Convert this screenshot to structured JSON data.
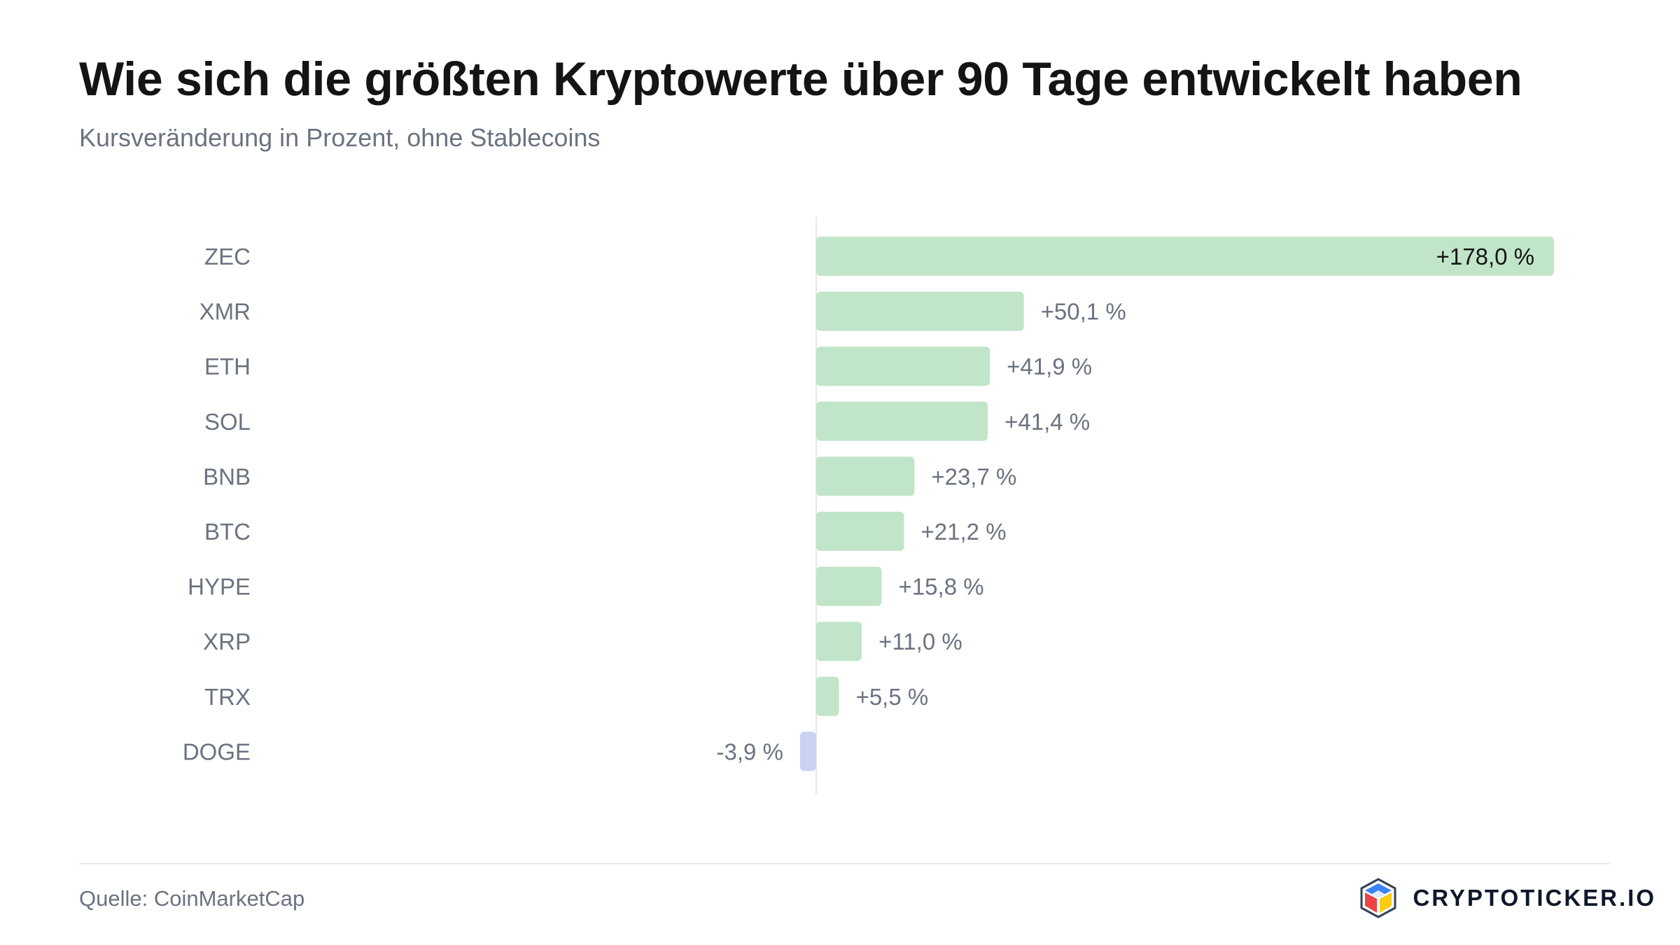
{
  "header": {
    "title": "Wie sich die größten Kryptowerte über 90 Tage entwickelt haben",
    "subtitle": "Kursveränderung in Prozent, ohne Stablecoins"
  },
  "footer": {
    "source": "Quelle: CoinMarketCap",
    "brand": "CRYPTOTICKER.IO"
  },
  "colors": {
    "positive_bar": "#c1e5c8",
    "negative_bar": "#c9d3f1",
    "label_text": "#6b7280",
    "inside_label_text": "#141414",
    "axis_line": "#e5e7eb"
  },
  "chart_data": {
    "type": "bar",
    "orientation": "horizontal",
    "title": "Wie sich die größten Kryptowerte über 90 Tage entwickelt haben",
    "subtitle": "Kursveränderung in Prozent, ohne Stablecoins",
    "categories": [
      "ZEC",
      "XMR",
      "ETH",
      "SOL",
      "BNB",
      "BTC",
      "HYPE",
      "XRP",
      "TRX",
      "DOGE"
    ],
    "values": [
      178.0,
      50.1,
      41.9,
      41.4,
      23.7,
      21.2,
      15.8,
      11.0,
      5.5,
      -3.9
    ],
    "data_labels": [
      "+178,0 %",
      "+50,1 %",
      "+41,9 %",
      "+41,4 %",
      "+23,7 %",
      "+21,2 %",
      "+15,8 %",
      "+11,0 %",
      "+5,5 %",
      "-3,9 %"
    ],
    "unit": "%",
    "grid": false,
    "legend": "none",
    "zero_line": true
  }
}
